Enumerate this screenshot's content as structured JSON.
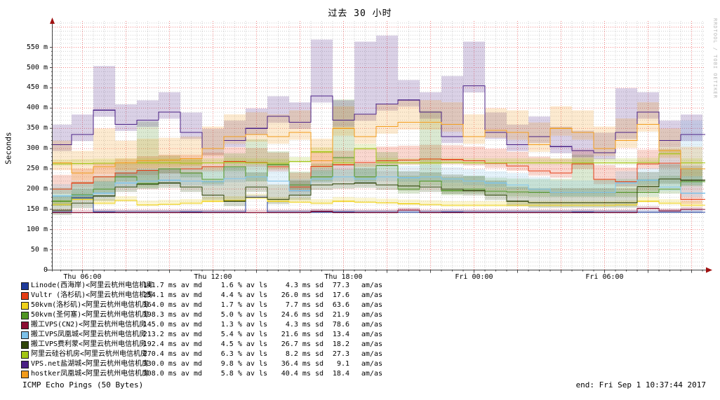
{
  "title": "过去 30 小时",
  "watermark": "RRDTOOL / TOBI OETIKER",
  "footer": {
    "caption": "ICMP Echo Pings (50 Bytes)",
    "end_label": "end: Fri Sep  1 10:37:44 2017"
  },
  "axes": {
    "ylabel": "Seconds",
    "y_ticks": [
      {
        "label": "550 m",
        "value": 550
      },
      {
        "label": "500 m",
        "value": 500
      },
      {
        "label": "450 m",
        "value": 450
      },
      {
        "label": "400 m",
        "value": 400
      },
      {
        "label": "350 m",
        "value": 350
      },
      {
        "label": "300 m",
        "value": 300
      },
      {
        "label": "250 m",
        "value": 250
      },
      {
        "label": "200 m",
        "value": 200
      },
      {
        "label": "150 m",
        "value": 150
      },
      {
        "label": "100 m",
        "value": 100
      },
      {
        "label": "50 m",
        "value": 50
      },
      {
        "label": "0",
        "value": 0
      }
    ],
    "x_ticks": [
      {
        "label": "Thu 06:00",
        "hour": 1.37
      },
      {
        "label": "Thu 12:00",
        "hour": 7.37
      },
      {
        "label": "Thu 18:00",
        "hour": 13.37
      },
      {
        "label": "Fri 00:00",
        "hour": 19.37
      },
      {
        "label": "Fri 06:00",
        "hour": 25.37
      }
    ]
  },
  "legend": {
    "rows": [
      {
        "label": "Linode(西海岸)<阿里云杭州电信机房",
        "color": "#1d3a9b",
        "md": "141.7 ms av md",
        "ls": "1.6 % av ls",
        "sd": "4.3 ms sd",
        "am": "77.3",
        "amas": "am/as"
      },
      {
        "label": "Vultr (洛杉矶)<阿里云杭州电信机房",
        "color": "#e63d15",
        "md": "254.1 ms av md",
        "ls": "4.4 % av ls",
        "sd": "26.0 ms sd",
        "am": "17.6",
        "amas": "am/as"
      },
      {
        "label": "50kvm(洛杉矶)<阿里云杭州电信机房",
        "color": "#efd21c",
        "md": "164.0 ms av md",
        "ls": "1.7 % av ls",
        "sd": "7.7 ms sd",
        "am": "63.6",
        "amas": "am/as"
      },
      {
        "label": "50kvm(圣何塞)<阿里云杭州电信机房",
        "color": "#4f9523",
        "md": "198.3 ms av md",
        "ls": "5.0 % av ls",
        "sd": "24.6 ms sd",
        "am": "21.9",
        "amas": "am/as"
      },
      {
        "label": "搬工VPS(CN2)<阿里云杭州电信机房",
        "color": "#8c0e33",
        "md": "145.0 ms av md",
        "ls": "1.3 % av ls",
        "sd": "4.3 ms sd",
        "am": "78.6",
        "amas": "am/as"
      },
      {
        "label": "搬工VPS凤凰城<阿里云杭州电信机房",
        "color": "#7dc2ea",
        "md": "213.2 ms av md",
        "ls": "5.4 % av ls",
        "sd": "21.6 ms sd",
        "am": "13.4",
        "amas": "am/as"
      },
      {
        "label": "搬工VPS费利蒙<阿里云杭州电信机房",
        "color": "#2f4409",
        "md": "192.4 ms av md",
        "ls": "4.5 % av ls",
        "sd": "26.7 ms sd",
        "am": "18.2",
        "amas": "am/as"
      },
      {
        "label": "阿里云硅谷机房<阿里云杭州电信机房",
        "color": "#a2c613",
        "md": "270.4 ms av md",
        "ls": "6.3 % av ls",
        "sd": "8.2 ms sd",
        "am": "27.3",
        "amas": "am/as"
      },
      {
        "label": "VPS.net盐湖城<阿里云杭州电信机房",
        "color": "#4b2185",
        "md": "330.0 ms av md",
        "ls": "9.8 % av ls",
        "sd": "36.4 ms sd",
        "am": "9.1",
        "amas": "am/as"
      },
      {
        "label": "hostker凤凰城<阿里云杭州电信机房",
        "color": "#f29c1c",
        "md": "308.0 ms av md",
        "ls": "5.8 % av ls",
        "sd": "40.4 ms sd",
        "am": "18.4",
        "amas": "am/as"
      }
    ]
  },
  "chart_data": {
    "type": "line",
    "subtype": "smokeping-latency-step",
    "title": "过去 30 小时",
    "ylabel": "Seconds",
    "y_unit": "milliseconds",
    "ylim": [
      0,
      615
    ],
    "grid": {
      "y_major_ms": 50,
      "y_minor_ms": 10,
      "x_major_h": 2,
      "x_minor_h": 0.5
    },
    "x_start": "Thu 04:37",
    "x_end": "Fri 10:37:44",
    "x_span_hours": 30,
    "sample_interval_hours": 1,
    "first_sample": "Thu 05:00",
    "x_tick_labels": [
      "Thu 06:00",
      "Thu 12:00",
      "Thu 18:00",
      "Fri 00:00",
      "Fri 06:00"
    ],
    "legend_position": "bottom",
    "series": [
      {
        "name": "Linode(西海岸)",
        "color": "#1d3a9b",
        "median_ms": 141.7,
        "loss_pct": 1.6,
        "sd_ms": 4.3,
        "values": [
          143,
          178,
          144,
          143,
          143,
          143,
          144,
          143,
          143,
          180,
          143,
          143,
          143,
          144,
          143,
          143,
          143,
          143,
          144,
          143,
          143,
          143,
          143,
          143,
          144,
          143,
          143,
          143,
          143,
          143
        ]
      },
      {
        "name": "Vultr (洛杉矶)",
        "color": "#e63d15",
        "median_ms": 254.1,
        "loss_pct": 4.4,
        "sd_ms": 26.0,
        "values": [
          200,
          215,
          230,
          240,
          246,
          250,
          250,
          255,
          268,
          266,
          255,
          205,
          256,
          260,
          266,
          270,
          272,
          274,
          273,
          270,
          264,
          257,
          245,
          240,
          262,
          224,
          218,
          262,
          264,
          175
        ]
      },
      {
        "name": "50kvm(洛杉矶)",
        "color": "#efd21c",
        "median_ms": 164.0,
        "loss_pct": 1.7,
        "sd_ms": 7.7,
        "values": [
          162,
          175,
          165,
          172,
          161,
          163,
          165,
          170,
          172,
          178,
          170,
          168,
          165,
          170,
          168,
          166,
          164,
          162,
          160,
          160,
          160,
          160,
          160,
          160,
          160,
          160,
          161,
          170,
          165,
          160
        ]
      },
      {
        "name": "50kvm(圣何塞)",
        "color": "#4f9523",
        "median_ms": 198.3,
        "loss_pct": 5.0,
        "sd_ms": 24.6,
        "values": [
          170,
          186,
          200,
          230,
          214,
          250,
          240,
          224,
          255,
          230,
          260,
          210,
          230,
          278,
          230,
          258,
          200,
          220,
          196,
          200,
          195,
          193,
          192,
          192,
          192,
          192,
          192,
          192,
          200,
          218
        ]
      },
      {
        "name": "搬工VPS(CN2)",
        "color": "#8c0e33",
        "median_ms": 145.0,
        "loss_pct": 1.3,
        "sd_ms": 4.3,
        "values": [
          142,
          142,
          142,
          142,
          142,
          142,
          142,
          142,
          142,
          142,
          142,
          142,
          145,
          142,
          142,
          142,
          148,
          142,
          142,
          142,
          142,
          142,
          142,
          142,
          142,
          142,
          142,
          152,
          146,
          150
        ]
      },
      {
        "name": "搬工VPS凤凰城",
        "color": "#7dc2ea",
        "median_ms": 213.2,
        "loss_pct": 5.4,
        "sd_ms": 21.6,
        "values": [
          183,
          184,
          190,
          215,
          220,
          222,
          220,
          218,
          226,
          230,
          220,
          196,
          225,
          230,
          225,
          230,
          228,
          230,
          225,
          220,
          215,
          210,
          200,
          192,
          192,
          192,
          215,
          222,
          205,
          190
        ]
      },
      {
        "name": "搬工VPS费利蒙",
        "color": "#2f4409",
        "median_ms": 192.4,
        "loss_pct": 4.5,
        "sd_ms": 26.7,
        "values": [
          148,
          165,
          183,
          205,
          212,
          215,
          205,
          185,
          170,
          205,
          175,
          185,
          210,
          213,
          215,
          210,
          208,
          205,
          200,
          196,
          185,
          170,
          166,
          166,
          166,
          166,
          166,
          206,
          225,
          222
        ]
      },
      {
        "name": "阿里云硅谷机房",
        "color": "#a2c613",
        "median_ms": 270.4,
        "loss_pct": 6.3,
        "sd_ms": 8.2,
        "values": [
          262,
          263,
          264,
          265,
          265,
          265,
          264,
          265,
          266,
          265,
          264,
          268,
          292,
          265,
          300,
          266,
          265,
          265,
          266,
          265,
          265,
          265,
          265,
          265,
          265,
          265,
          265,
          266,
          287,
          265
        ]
      },
      {
        "name": "VPS.net盐湖城",
        "color": "#4b2185",
        "median_ms": 330.0,
        "loss_pct": 9.8,
        "sd_ms": 36.4,
        "values": [
          310,
          335,
          395,
          360,
          370,
          390,
          340,
          300,
          320,
          350,
          380,
          365,
          430,
          370,
          385,
          410,
          420,
          390,
          330,
          455,
          340,
          310,
          330,
          305,
          295,
          290,
          340,
          390,
          320,
          335
        ]
      },
      {
        "name": "hostker凤凰城",
        "color": "#f29c1c",
        "median_ms": 308.0,
        "loss_pct": 5.8,
        "sd_ms": 40.4,
        "values": [
          265,
          240,
          255,
          265,
          270,
          272,
          275,
          300,
          330,
          335,
          330,
          340,
          270,
          350,
          330,
          355,
          365,
          365,
          360,
          330,
          345,
          340,
          310,
          350,
          340,
          300,
          320,
          360,
          295,
          250
        ]
      }
    ],
    "smoke_spikes": [
      {
        "s": 8,
        "i": 2,
        "up": 60
      },
      {
        "s": 8,
        "i": 12,
        "up": 90
      },
      {
        "s": 8,
        "i": 14,
        "up": 130
      },
      {
        "s": 8,
        "i": 15,
        "up": 120
      },
      {
        "s": 8,
        "i": 18,
        "up": 100
      },
      {
        "s": 8,
        "i": 19,
        "up": 60
      },
      {
        "s": 8,
        "i": 26,
        "up": 60
      },
      {
        "s": 3,
        "i": 4,
        "up": 120
      },
      {
        "s": 3,
        "i": 9,
        "up": 60
      },
      {
        "s": 3,
        "i": 13,
        "up": 110
      },
      {
        "s": 3,
        "i": 17,
        "up": 140
      },
      {
        "s": 3,
        "i": 24,
        "up": 60
      },
      {
        "s": 5,
        "i": 28,
        "up": 70
      },
      {
        "s": 5,
        "i": 29,
        "up": 150
      },
      {
        "s": 9,
        "i": 2,
        "up": 40
      },
      {
        "s": 6,
        "i": 8,
        "up": 50
      }
    ]
  }
}
